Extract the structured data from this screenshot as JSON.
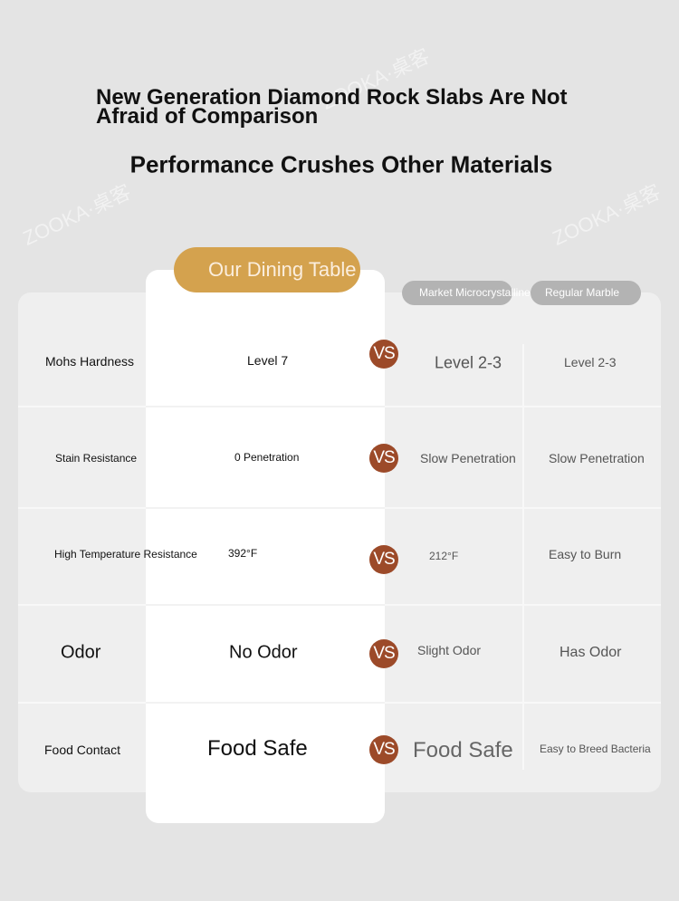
{
  "header": {
    "title": "New Generation Diamond Rock Slabs Are Not Afraid of Comparison",
    "subtitle": "Performance Crushes Other Materials",
    "watermark": "ZOOKA·桌客"
  },
  "table": {
    "columns": [
      "Our Dining Table",
      "Market Microcrystalline Stone",
      "Regular Marble"
    ],
    "vs": "VS",
    "rows": [
      [
        "Mohs Hardness",
        "Level 7",
        "Level 2-3",
        "Level 2-3"
      ],
      [
        "Stain Resistance",
        "0 Penetration",
        "Slow Penetration",
        "Slow Penetration"
      ],
      [
        "High Temperature Resistance",
        "392°F",
        "212°F",
        "Easy to Burn"
      ],
      [
        "Odor",
        "No Odor",
        "Slight Odor",
        "Has Odor"
      ],
      [
        "Food Contact",
        "Food Safe",
        "Food Safe",
        "Easy to Breed Bacteria"
      ]
    ]
  }
}
